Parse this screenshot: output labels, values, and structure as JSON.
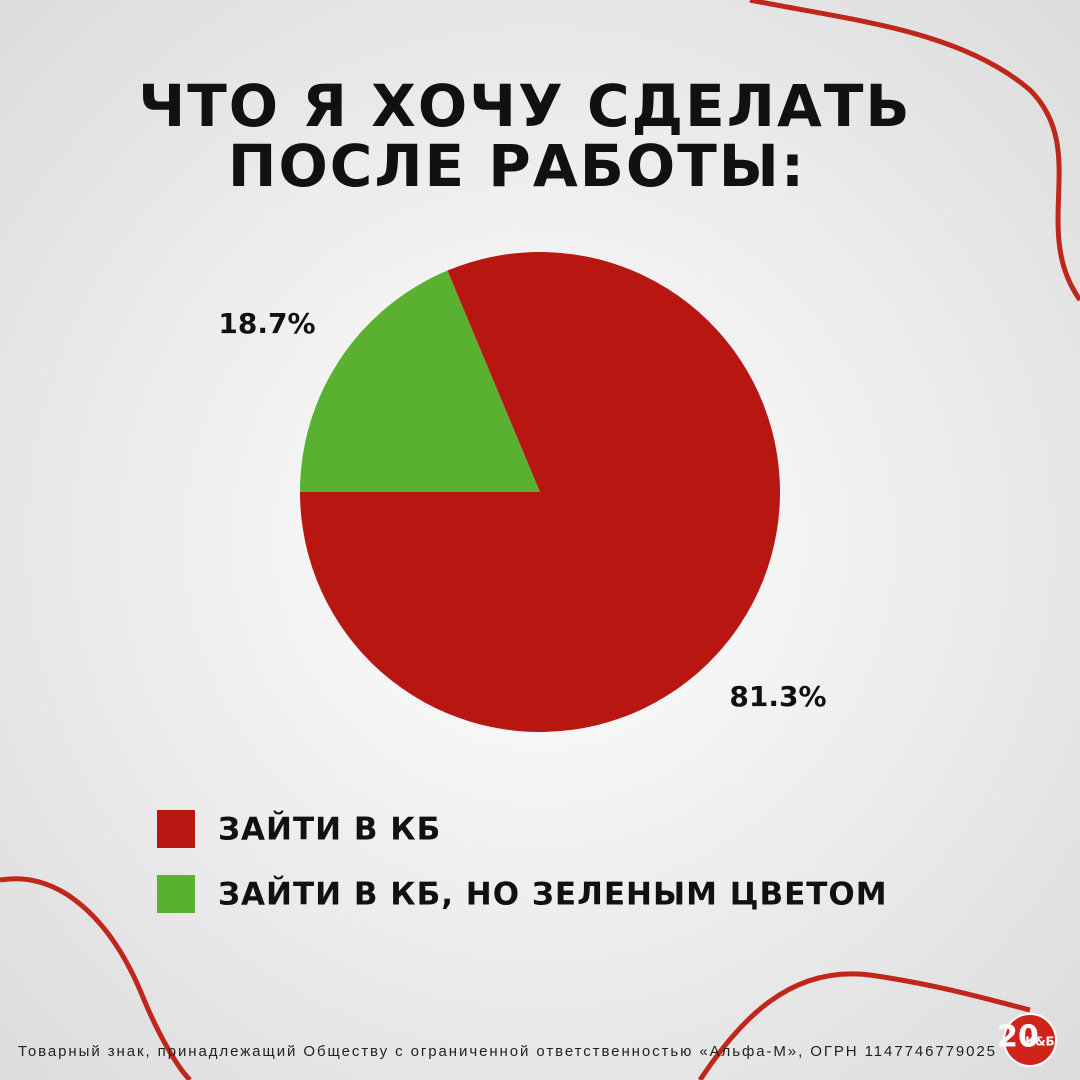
{
  "chart_data": {
    "type": "pie",
    "title": [
      "ЧТО Я ХОЧУ СДЕЛАТЬ",
      "ПОСЛЕ РАБОТЫ:"
    ],
    "categories": [
      "ЗАЙТИ В КБ",
      "ЗАЙТИ В КБ, НО ЗЕЛЕНЫМ ЦВЕТОМ"
    ],
    "values": [
      81.3,
      18.7
    ],
    "value_labels": [
      "81.3%",
      "18.7%"
    ],
    "colors": [
      "#b81610",
      "#5ab030"
    ]
  },
  "footer": "Товарный знак, принадлежащий Обществу с ограниченной ответственностью «Альфа-М», ОГРН 1147746779025",
  "logo": {
    "number": "20",
    "text": "К&Б"
  }
}
